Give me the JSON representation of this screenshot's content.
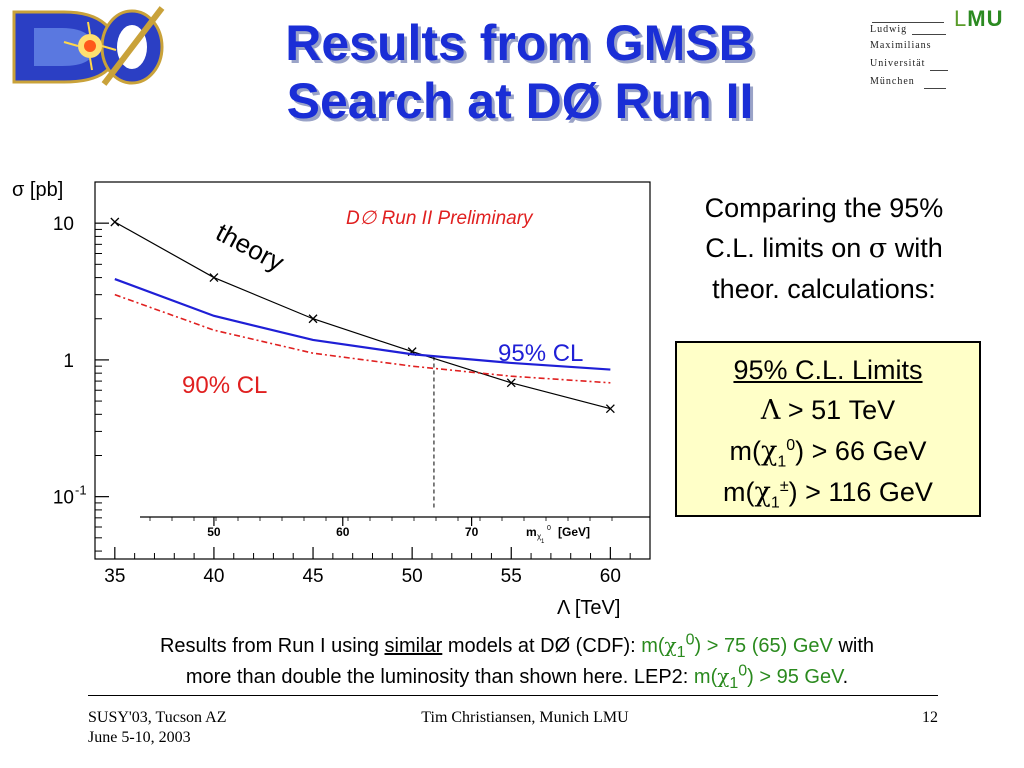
{
  "header": {
    "title_line1": "Results from GMSB",
    "title_line2": "Search at DØ Run II",
    "d0_logo_text": "DØ",
    "lmu_logo": {
      "lines": [
        "Ludwig",
        "Maximilians",
        "Universität",
        "München"
      ],
      "mark_l": "L",
      "mark_mu": "MU"
    }
  },
  "chart_data": {
    "type": "line",
    "title": "D∅ Run II Preliminary",
    "ylabel": "σ [pb]",
    "xlabel": "Λ [TeV]",
    "xlim": [
      34,
      62
    ],
    "ylim": [
      0.035,
      20
    ],
    "yscale": "log",
    "x_ticks": [
      35,
      40,
      45,
      50,
      55,
      60
    ],
    "y_ticks": [
      {
        "value": 10,
        "label": "10"
      },
      {
        "value": 1,
        "label": "1"
      },
      {
        "value": 0.1,
        "label": "10",
        "sup": "-1"
      }
    ],
    "secondary_axis": {
      "label": "m",
      "label_sub": "χ",
      "label_subsub": "1",
      "label_sup": "0",
      "label_unit": "[GeV]",
      "ticks": [
        {
          "lambda": 40,
          "label": "50"
        },
        {
          "lambda": 46.5,
          "label": "60"
        },
        {
          "lambda": 53,
          "label": "70"
        }
      ]
    },
    "series": [
      {
        "name": "theory",
        "color": "#000000",
        "x": [
          35,
          40,
          45,
          50,
          55,
          60
        ],
        "y": [
          10.2,
          4.0,
          2.0,
          1.15,
          0.68,
          0.44
        ]
      },
      {
        "name": "95% CL",
        "color": "#1f1fd6",
        "x": [
          35,
          40,
          45,
          50,
          55,
          60
        ],
        "y": [
          3.9,
          2.1,
          1.4,
          1.1,
          0.95,
          0.85
        ]
      },
      {
        "name": "90% CL",
        "color": "#e02020",
        "x": [
          35,
          40,
          45,
          50,
          55,
          60
        ],
        "y": [
          3.0,
          1.65,
          1.12,
          0.9,
          0.76,
          0.68
        ]
      }
    ],
    "limit_marker": {
      "x": 51.1,
      "y_from": 0.035,
      "y_to": 1.06
    }
  },
  "right_panel": {
    "compare_line1": "Comparing the 95%",
    "compare_line2_a": "C.L. limits on ",
    "compare_sigma": "σ",
    "compare_line2_b": " with",
    "compare_line3": "theor. calculations:",
    "limits_heading": "95% C.L. Limits",
    "limit1_sym": "Λ",
    "limit1_rest": " > 51 TeV",
    "limit2_pre": "m(",
    "limit2_chi": "χ",
    "limit2_sub": "1",
    "limit2_sup": "0",
    "limit2_post": ") > 66 GeV",
    "limit3_pre": "m(",
    "limit3_chi": "χ",
    "limit3_sub": "1",
    "limit3_sup": "±",
    "limit3_post": ") > 116 GeV"
  },
  "footnote": {
    "part1": "Results from Run I using ",
    "part_similar": "similar",
    "part2": " models at DØ (CDF): ",
    "green1_pre": "m(",
    "green1_chi": "χ",
    "green1_sub": "1",
    "green1_sup": "0",
    "green1_post": ") > 75 (65) GeV",
    "part3": " with",
    "line2_text": "more than double the luminosity than shown here. LEP2: ",
    "green2_pre": "m(",
    "green2_chi": "χ",
    "green2_sub": "1",
    "green2_sup": "0",
    "green2_post": ") > 95 GeV",
    "period": "."
  },
  "footer": {
    "left_line1": "SUSY'03, Tucson AZ",
    "left_line2": "June 5-10, 2003",
    "center": "Tim Christiansen, Munich LMU",
    "page_number": "12"
  }
}
